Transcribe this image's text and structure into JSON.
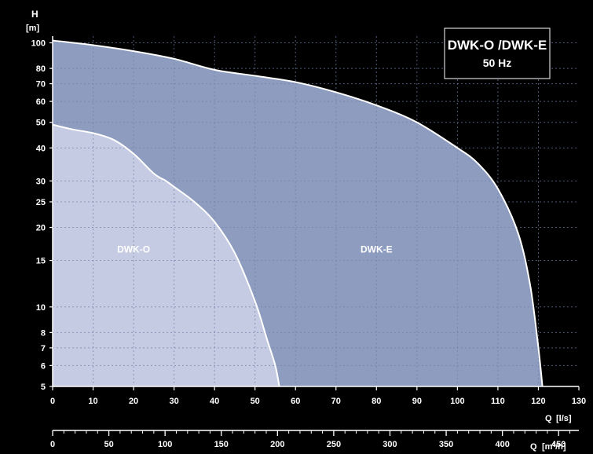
{
  "chart_data": {
    "type": "area",
    "title": "DWK-O /DWK-E",
    "subtitle": "50 Hz",
    "ylabel": "H",
    "yunit": "[m]",
    "xlabel": "Q",
    "xunit": "[l/s]",
    "x2label": "Q",
    "x2unit": "[m³/h]",
    "y_scale": "log",
    "ylim": [
      5,
      106
    ],
    "xlim": [
      0,
      130
    ],
    "grid": true,
    "x_ticks": [
      "0",
      "10",
      "20",
      "30",
      "40",
      "50",
      "60",
      "70",
      "80",
      "90",
      "100",
      "110",
      "120",
      "130"
    ],
    "y_ticks": [
      "5",
      "6",
      "7",
      "8",
      "10",
      "15",
      "20",
      "25",
      "30",
      "40",
      "50",
      "60",
      "70",
      "80",
      "100"
    ],
    "x2_ticks": [
      "0",
      "50",
      "100",
      "150",
      "200",
      "250",
      "300",
      "350",
      "400",
      "450"
    ],
    "colors": {
      "dwk_e": "#8d9cbf",
      "dwk_o": "#c5cbe2",
      "grid": "#6f7fa6",
      "outline": "#ffffff"
    },
    "series": [
      {
        "name": "DWK-E",
        "x": [
          0,
          10,
          20,
          30,
          40,
          50,
          60,
          70,
          80,
          90,
          100,
          105,
          110,
          115,
          118,
          120,
          121
        ],
        "y": [
          102,
          98,
          93,
          87,
          79,
          75,
          71,
          65,
          58,
          50,
          40,
          35,
          28,
          19,
          12,
          7,
          5
        ]
      },
      {
        "name": "DWK-O",
        "x": [
          0,
          5,
          10,
          15,
          20,
          25,
          28,
          30,
          35,
          40,
          45,
          50,
          53,
          55,
          56
        ],
        "y": [
          49,
          47,
          45.5,
          43,
          38,
          32,
          30,
          28.5,
          25,
          21,
          16,
          10.5,
          7.5,
          6,
          5
        ]
      }
    ],
    "annotations": [
      {
        "text": "DWK-O",
        "x": 20,
        "y": 16.5
      },
      {
        "text": "DWK-E",
        "x": 80,
        "y": 16.5
      }
    ]
  }
}
